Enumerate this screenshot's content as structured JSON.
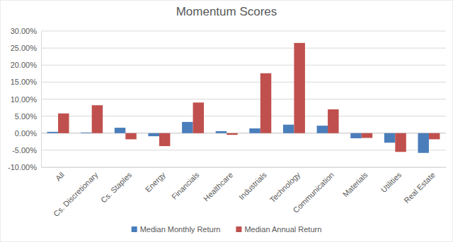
{
  "chart_data": {
    "type": "bar",
    "title": "Momentum Scores",
    "categories": [
      "All",
      "Cs. Discretionary",
      "Cs. Staples",
      "Energy",
      "Financials",
      "Healthcare",
      "Industrials",
      "Technology",
      "Communication",
      "Materials",
      "Utilities",
      "Real Estate"
    ],
    "series": [
      {
        "name": "Median Monthly Return",
        "color": "#4a7ebb",
        "values": [
          0.4,
          0.2,
          1.6,
          -0.9,
          3.3,
          0.6,
          1.4,
          2.5,
          2.2,
          -1.5,
          -2.8,
          -5.8
        ]
      },
      {
        "name": "Median Annual Return",
        "color": "#c0504d",
        "values": [
          5.8,
          8.2,
          -1.8,
          -3.8,
          9.0,
          -0.5,
          17.6,
          26.5,
          7.0,
          -1.4,
          -5.5,
          -1.8
        ]
      }
    ],
    "ylim": [
      -10,
      30
    ],
    "yticks": [
      {
        "value": -10,
        "label": "-10.00%"
      },
      {
        "value": -5,
        "label": "-5.00%"
      },
      {
        "value": 0,
        "label": "0.00%"
      },
      {
        "value": 5,
        "label": "5.00%"
      },
      {
        "value": 10,
        "label": "10.00%"
      },
      {
        "value": 15,
        "label": "15.00%"
      },
      {
        "value": 20,
        "label": "20.00%"
      },
      {
        "value": 25,
        "label": "25.00%"
      },
      {
        "value": 30,
        "label": "30.00%"
      }
    ],
    "grid": true,
    "legend": "bottom"
  }
}
